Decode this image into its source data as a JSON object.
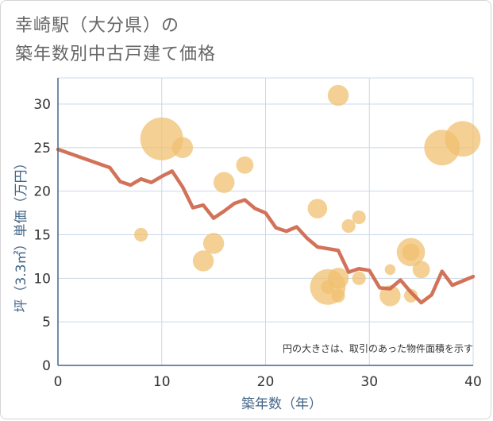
{
  "title_line1": "幸崎駅（大分県）の",
  "title_line2": "築年数別中古戸建て価格",
  "chart_data": {
    "type": "scatter+line",
    "xlabel": "築年数（年）",
    "ylabel": "坪（3.3㎡）単価（万円）",
    "xlim": [
      0,
      40
    ],
    "ylim": [
      0,
      32
    ],
    "xticks": [
      0,
      10,
      20,
      30,
      40
    ],
    "yticks": [
      0,
      5,
      10,
      15,
      20,
      25,
      30
    ],
    "note": "円の大きさは、取引のあった物件面積を示す",
    "colors": {
      "bubble": "#f0c070",
      "line": "#d06a50",
      "grid": "#c8d8e8",
      "axis": "#446688"
    },
    "bubbles": [
      {
        "x": 8,
        "y": 15,
        "size": 1
      },
      {
        "x": 10,
        "y": 26,
        "size": 5
      },
      {
        "x": 12,
        "y": 25,
        "size": 2
      },
      {
        "x": 14,
        "y": 12,
        "size": 2
      },
      {
        "x": 15,
        "y": 14,
        "size": 2
      },
      {
        "x": 16,
        "y": 21,
        "size": 2
      },
      {
        "x": 18,
        "y": 23,
        "size": 1.5
      },
      {
        "x": 25,
        "y": 18,
        "size": 1.8
      },
      {
        "x": 26,
        "y": 9,
        "size": 4
      },
      {
        "x": 26,
        "y": 9,
        "size": 1
      },
      {
        "x": 27,
        "y": 31,
        "size": 2
      },
      {
        "x": 27,
        "y": 10,
        "size": 2
      },
      {
        "x": 27,
        "y": 8,
        "size": 1
      },
      {
        "x": 28,
        "y": 16,
        "size": 1
      },
      {
        "x": 29,
        "y": 17,
        "size": 1
      },
      {
        "x": 29,
        "y": 10,
        "size": 1
      },
      {
        "x": 32,
        "y": 11,
        "size": 0.6
      },
      {
        "x": 32,
        "y": 8,
        "size": 2
      },
      {
        "x": 34,
        "y": 13,
        "size": 3
      },
      {
        "x": 34,
        "y": 13,
        "size": 1.5
      },
      {
        "x": 34,
        "y": 8,
        "size": 1
      },
      {
        "x": 35,
        "y": 11,
        "size": 1.5
      },
      {
        "x": 37,
        "y": 25,
        "size": 4
      },
      {
        "x": 39,
        "y": 26,
        "size": 4
      }
    ],
    "line": {
      "x": [
        0,
        5,
        6,
        7,
        8,
        9,
        10,
        11,
        12,
        13,
        14,
        15,
        16,
        17,
        18,
        19,
        20,
        21,
        22,
        23,
        24,
        25,
        26,
        27,
        28,
        29,
        30,
        31,
        32,
        33,
        34,
        35,
        36,
        37,
        38,
        39,
        40
      ],
      "y": [
        24.8,
        22.7,
        21.1,
        20.7,
        21.4,
        21.0,
        21.7,
        22.3,
        20.5,
        18.1,
        18.4,
        16.9,
        17.7,
        18.6,
        19.0,
        18.0,
        17.5,
        15.8,
        15.4,
        15.9,
        14.6,
        13.6,
        13.4,
        13.2,
        10.7,
        11.1,
        10.9,
        8.9,
        8.8,
        9.8,
        8.4,
        7.2,
        8.1,
        10.8,
        9.2,
        9.7,
        10.2
      ]
    }
  }
}
